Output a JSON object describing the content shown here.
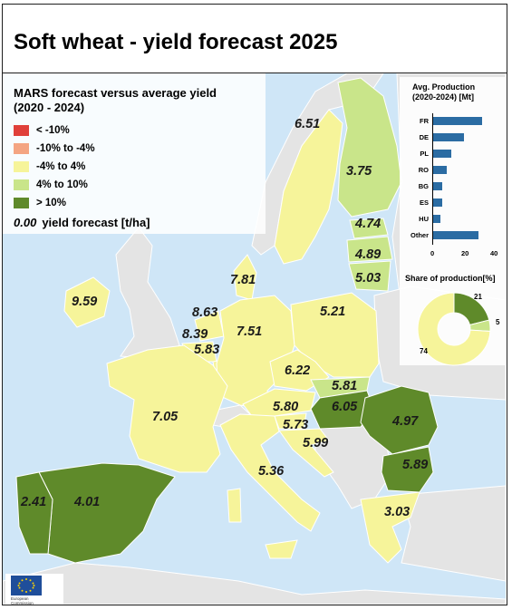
{
  "title": "Soft wheat - yield forecast 2025",
  "legend": {
    "title": "MARS forecast versus average yield\n(2020 - 2024)",
    "items": [
      {
        "label": "< -10%",
        "color": "#e0403a"
      },
      {
        "label": "-10% to -4%",
        "color": "#f4a582"
      },
      {
        "label": "-4% to 4%",
        "color": "#f6f49a"
      },
      {
        "label": "4% to 10%",
        "color": "#c9e58a"
      },
      {
        "label": "> 10%",
        "color": "#5f8a2a"
      }
    ],
    "sample_value": "0.00",
    "sample_label": "yield forecast [t/ha]"
  },
  "map_values": {
    "se": "6.51",
    "fi": "3.75",
    "ee": "4.74",
    "lv": "4.89",
    "lt": "5.03",
    "dk": "7.81",
    "ie": "9.59",
    "nl": "8.63",
    "be": "8.39",
    "lu": "5.83",
    "de": "7.51",
    "pl": "5.21",
    "cz": "6.22",
    "sk": "5.81",
    "hu": "6.05",
    "ro": "4.97",
    "at": "5.80",
    "si": "5.73",
    "hr": "5.99",
    "fr": "7.05",
    "it": "5.36",
    "bg": "5.89",
    "gr": "3.03",
    "pt": "2.41",
    "es": "4.01"
  },
  "production_chart": {
    "title": "Avg. Production\n(2020-2024) [Mt]",
    "type": "bar",
    "categories": [
      "FR",
      "DE",
      "PL",
      "RO",
      "BG",
      "ES",
      "HU",
      "Other"
    ],
    "values": [
      33,
      21,
      12,
      9,
      6,
      6,
      5,
      31
    ],
    "xticks": [
      "0",
      "20",
      "40"
    ],
    "xlim": [
      0,
      40
    ],
    "bar_color": "#2b6ca3"
  },
  "share_chart": {
    "title": "Share of production[%]",
    "type": "pie",
    "slices": [
      {
        "label": "21",
        "value": 21,
        "color": "#5f8a2a"
      },
      {
        "label": "5",
        "value": 5,
        "color": "#c9e58a"
      },
      {
        "label": "74",
        "value": 74,
        "color": "#f6f49a"
      }
    ]
  },
  "logo": {
    "text": "European\nCommission"
  },
  "colors": {
    "sea": "#cfe6f7",
    "non_eu": "#e4e4e4",
    "border": "#ffffff"
  }
}
